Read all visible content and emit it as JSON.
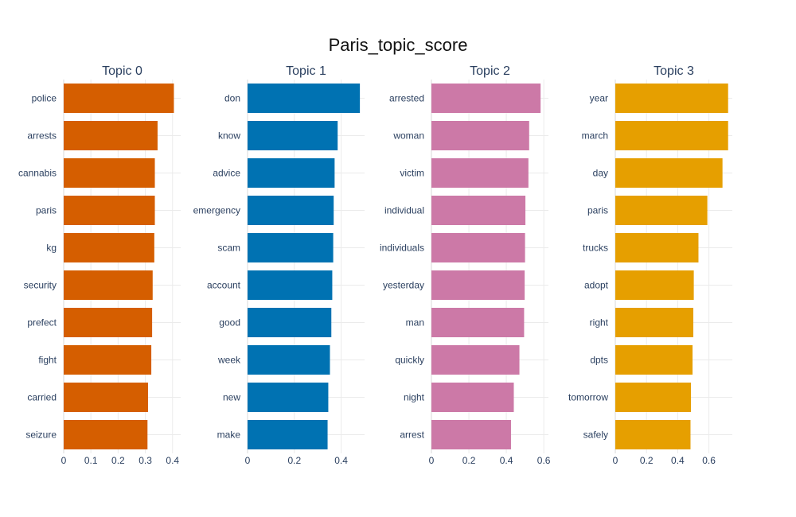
{
  "chart_data": {
    "type": "bar",
    "orientation": "horizontal",
    "title": "Paris_topic_score",
    "grid": true,
    "panels": [
      {
        "title": "Topic 0",
        "color": "#D55E00",
        "xlim": [
          0,
          0.43
        ],
        "xticks": [
          0,
          0.1,
          0.2,
          0.3,
          0.4
        ],
        "xtick_labels": [
          "0",
          "0.1",
          "0.2",
          "0.3",
          "0.4"
        ],
        "categories": [
          "police",
          "arrests",
          "cannabis",
          "paris",
          "kg",
          "security",
          "prefect",
          "fight",
          "carried",
          "seizure"
        ],
        "values": [
          0.405,
          0.345,
          0.335,
          0.335,
          0.333,
          0.327,
          0.325,
          0.322,
          0.31,
          0.308
        ]
      },
      {
        "title": "Topic 1",
        "color": "#0072B2",
        "xlim": [
          0,
          0.5
        ],
        "xticks": [
          0,
          0.2,
          0.4
        ],
        "xtick_labels": [
          "0",
          "0.2",
          "0.4"
        ],
        "categories": [
          "don",
          "know",
          "advice",
          "emergency",
          "scam",
          "account",
          "good",
          "week",
          "new",
          "make"
        ],
        "values": [
          0.48,
          0.385,
          0.372,
          0.368,
          0.366,
          0.362,
          0.358,
          0.352,
          0.345,
          0.342
        ]
      },
      {
        "title": "Topic 2",
        "color": "#CC79A7",
        "xlim": [
          0,
          0.625
        ],
        "xticks": [
          0,
          0.2,
          0.4,
          0.6
        ],
        "xtick_labels": [
          "0",
          "0.2",
          "0.4",
          "0.6"
        ],
        "categories": [
          "arrested",
          "woman",
          "victim",
          "individual",
          "individuals",
          "yesterday",
          "man",
          "quickly",
          "night",
          "arrest"
        ],
        "values": [
          0.583,
          0.522,
          0.518,
          0.502,
          0.5,
          0.498,
          0.495,
          0.47,
          0.44,
          0.425
        ]
      },
      {
        "title": "Topic 3",
        "color": "#E69F00",
        "xlim": [
          0,
          0.75
        ],
        "xticks": [
          0,
          0.2,
          0.4,
          0.6
        ],
        "xtick_labels": [
          "0",
          "0.2",
          "0.4",
          "0.6"
        ],
        "categories": [
          "year",
          "march",
          "day",
          "paris",
          "trucks",
          "adopt",
          "right",
          "dpts",
          "tomorrow",
          "safely"
        ],
        "values": [
          0.723,
          0.723,
          0.687,
          0.59,
          0.533,
          0.503,
          0.5,
          0.495,
          0.485,
          0.482
        ]
      }
    ]
  }
}
